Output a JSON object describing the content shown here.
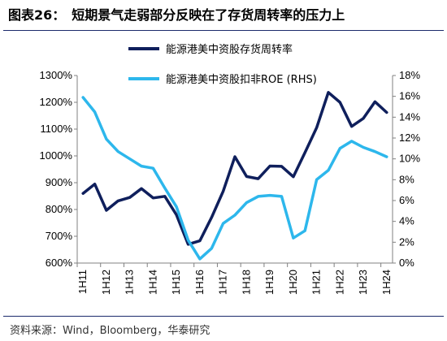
{
  "header": {
    "label": "图表26：",
    "title": "短期景气走弱部分反映在了存货周转率的压力上"
  },
  "source": "资料来源：Wind，Bloomberg，华泰研究",
  "chart_data": {
    "type": "line",
    "title": "短期景气走弱部分反映在了存货周转率的压力上",
    "categories": [
      "1H11",
      "2H11",
      "1H12",
      "2H12",
      "1H13",
      "2H13",
      "1H14",
      "2H14",
      "1H15",
      "2H15",
      "1H16",
      "2H16",
      "1H17",
      "2H17",
      "1H18",
      "2H18",
      "1H19",
      "2H19",
      "1H20",
      "2H20",
      "1H21",
      "2H21",
      "1H22",
      "2H22",
      "1H23",
      "2H23",
      "1H24"
    ],
    "tick_labels": [
      "1H11",
      "1H12",
      "1H13",
      "1H14",
      "1H15",
      "1H16",
      "1H17",
      "1H18",
      "1H19",
      "1H20",
      "1H21",
      "1H22",
      "1H23",
      "1H24"
    ],
    "y_left": {
      "ylim": [
        600,
        1300
      ],
      "ticks": [
        600,
        700,
        800,
        900,
        1000,
        1100,
        1200,
        1300
      ],
      "tick_labels": [
        "600%",
        "700%",
        "800%",
        "900%",
        "1000%",
        "1100%",
        "1200%",
        "1300%"
      ]
    },
    "y_right": {
      "ylim": [
        0,
        18
      ],
      "ticks": [
        0,
        2,
        4,
        6,
        8,
        10,
        12,
        14,
        16,
        18
      ],
      "tick_labels": [
        "0%",
        "2%",
        "4%",
        "6%",
        "8%",
        "10%",
        "12%",
        "14%",
        "16%",
        "18%"
      ]
    },
    "series": [
      {
        "name": "能源港美中资股存货周转率",
        "axis": "left",
        "color": "#0f1f5c",
        "values": [
          860,
          895,
          797,
          832,
          845,
          878,
          843,
          849,
          780,
          670,
          683,
          770,
          868,
          997,
          923,
          915,
          962,
          961,
          922,
          1012,
          1105,
          1237,
          1200,
          1110,
          1140,
          1202,
          1162
        ]
      },
      {
        "name": "能源港美中资股扣非ROE (RHS)",
        "axis": "right",
        "color": "#2db7ec",
        "values": [
          15.9,
          14.5,
          11.9,
          10.7,
          10.0,
          9.3,
          9.1,
          7.2,
          5.4,
          2.2,
          0.4,
          1.4,
          3.8,
          4.6,
          5.8,
          6.4,
          6.5,
          6.4,
          2.4,
          3.1,
          8.0,
          8.9,
          11.0,
          11.7,
          11.1,
          10.7,
          10.2
        ]
      }
    ],
    "legend": "top-left"
  }
}
